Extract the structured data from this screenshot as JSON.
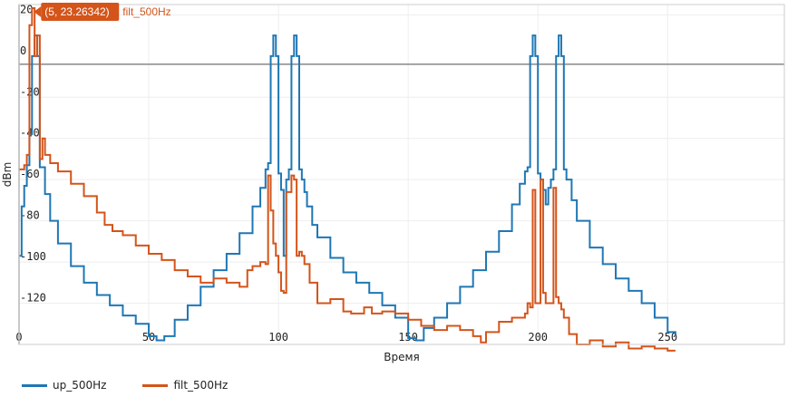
{
  "chart_data": {
    "type": "line",
    "xlabel": "Время",
    "ylabel": "dBm",
    "xlim": [
      0,
      295
    ],
    "ylim": [
      -140,
      25
    ],
    "xticks": [
      0,
      50,
      100,
      150,
      200,
      250
    ],
    "yticks": [
      20,
      0,
      -20,
      -40,
      -60,
      -80,
      -100,
      -120
    ],
    "grid": true,
    "legend_position": "bottom-left",
    "tooltip": {
      "label": "(5, 23.26342)",
      "series_label": "filt_500Hz",
      "x": 5,
      "y": 23.26342,
      "color": "#d4541a"
    },
    "series": [
      {
        "name": "up_500Hz",
        "color": "#1f77b4",
        "x": [
          0,
          1,
          2,
          3,
          4,
          5,
          6,
          7,
          8,
          10,
          12,
          15,
          20,
          25,
          30,
          35,
          40,
          45,
          50,
          53,
          56,
          60,
          65,
          70,
          75,
          80,
          85,
          90,
          93,
          95,
          96,
          97,
          98,
          99,
          100,
          101,
          102,
          103,
          104,
          105,
          106,
          107,
          108,
          109,
          110,
          111,
          113,
          115,
          120,
          125,
          130,
          135,
          140,
          145,
          150,
          153,
          156,
          160,
          165,
          170,
          175,
          180,
          185,
          190,
          193,
          195,
          196,
          197,
          198,
          199,
          200,
          201,
          202,
          203,
          204,
          205,
          206,
          207,
          208,
          209,
          210,
          211,
          213,
          215,
          220,
          225,
          230,
          235,
          240,
          245,
          250,
          253
        ],
        "y": [
          -97,
          -73,
          -63,
          -53,
          -38,
          0,
          10,
          0,
          -54,
          -67,
          -80,
          -91,
          -102,
          -110,
          -116,
          -121,
          -126,
          -130,
          -136,
          -138,
          -136,
          -128,
          -121,
          -112,
          -104,
          -96,
          -86,
          -73,
          -64,
          -55,
          -52,
          0,
          10,
          0,
          -57,
          -65,
          -97,
          -60,
          -55,
          0,
          10,
          0,
          -55,
          -60,
          -66,
          -73,
          -82,
          -88,
          -98,
          -105,
          -110,
          -115,
          -121,
          -127,
          -137,
          -138,
          -132,
          -127,
          -120,
          -112,
          -104,
          -95,
          -85,
          -72,
          -62,
          -56,
          -54,
          0,
          10,
          0,
          -57,
          -60,
          -65,
          -72,
          -64,
          -60,
          -55,
          0,
          10,
          0,
          -55,
          -60,
          -70,
          -80,
          -93,
          -101,
          -108,
          -114,
          -120,
          -127,
          -134,
          -136
        ]
      },
      {
        "name": "filt_500Hz",
        "color": "#d4541a",
        "x": [
          0,
          2,
          3,
          4,
          5,
          6,
          7,
          8,
          9,
          10,
          12,
          15,
          20,
          25,
          30,
          33,
          36,
          40,
          45,
          50,
          55,
          60,
          65,
          70,
          75,
          80,
          85,
          88,
          90,
          93,
          95,
          96,
          97,
          98,
          99,
          100,
          101,
          102,
          103,
          105,
          106,
          107,
          108,
          109,
          110,
          112,
          115,
          120,
          125,
          128,
          130,
          133,
          136,
          140,
          145,
          150,
          155,
          160,
          165,
          170,
          175,
          178,
          180,
          185,
          190,
          195,
          196,
          197,
          198,
          199,
          200,
          201,
          202,
          203,
          205,
          206,
          207,
          208,
          209,
          210,
          212,
          215,
          220,
          225,
          230,
          235,
          240,
          245,
          250,
          253
        ],
        "y": [
          -55,
          -53,
          -48,
          15,
          23.26342,
          0,
          10,
          -50,
          -40,
          -48,
          -52,
          -56,
          -62,
          -68,
          -76,
          -82,
          -85,
          -87,
          -92,
          -96,
          -99,
          -104,
          -107,
          -110,
          -108,
          -110,
          -112,
          -104,
          -102,
          -100,
          -101,
          -58,
          -75,
          -91,
          -97,
          -105,
          -114,
          -115,
          -66,
          -58,
          -60,
          -97,
          -95,
          -97,
          -101,
          -110,
          -120,
          -118,
          -124,
          -125,
          -125,
          -122,
          -125,
          -124,
          -125,
          -128,
          -131,
          -133,
          -131,
          -133,
          -136,
          -139,
          -134,
          -129,
          -127,
          -125,
          -120,
          -122,
          -65,
          -120,
          -120,
          -60,
          -115,
          -120,
          -120,
          -64,
          -117,
          -120,
          -123,
          -127,
          -135,
          -140,
          -138,
          -141,
          -139,
          -142,
          -141,
          -142,
          -143,
          -143
        ]
      }
    ]
  }
}
